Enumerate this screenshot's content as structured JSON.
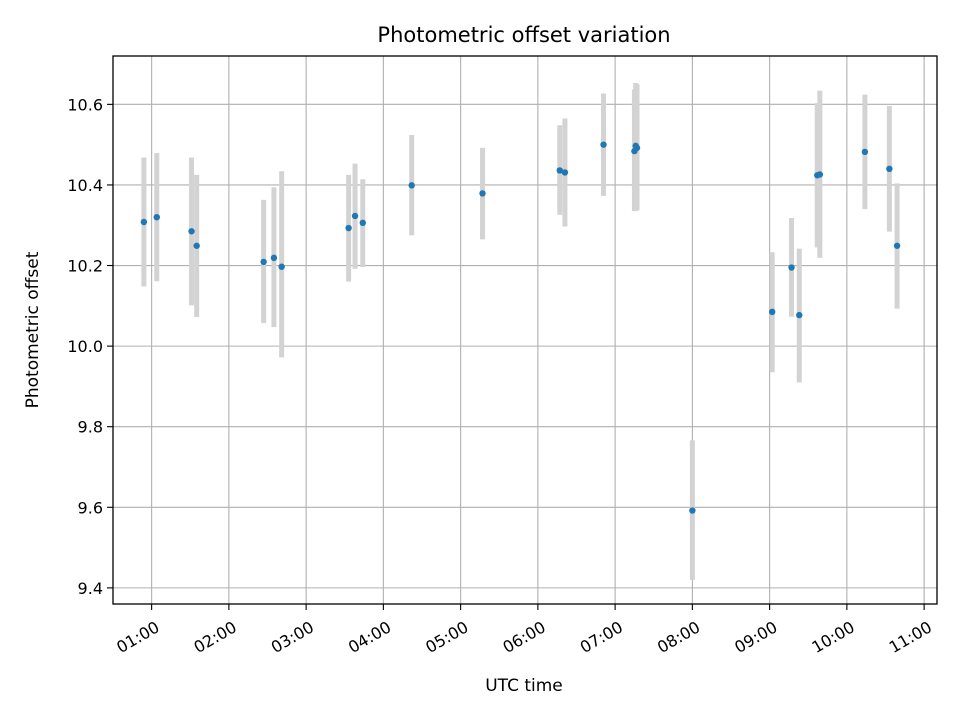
{
  "chart_data": {
    "type": "scatter",
    "title": "Photometric offset variation",
    "xlabel": "UTC time",
    "ylabel": "Photometric offset",
    "xlim": [
      "00:30",
      "11:10"
    ],
    "ylim": [
      9.36,
      10.72
    ],
    "x_ticks": [
      "01:00",
      "02:00",
      "03:00",
      "04:00",
      "05:00",
      "06:00",
      "07:00",
      "08:00",
      "09:00",
      "10:00",
      "11:00"
    ],
    "y_ticks": [
      9.4,
      9.6,
      9.8,
      10.0,
      10.2,
      10.4,
      10.6
    ],
    "y_tick_labels": [
      "9.4",
      "9.6",
      "9.8",
      "10.0",
      "10.2",
      "10.4",
      "10.6"
    ],
    "grid": true,
    "marker_color": "#1f77b4",
    "errorbar_color": "#d3d3d3",
    "points": [
      {
        "time": "00:54",
        "value": 10.308,
        "low": 10.148,
        "high": 10.468
      },
      {
        "time": "01:04",
        "value": 10.32,
        "low": 10.161,
        "high": 10.479
      },
      {
        "time": "01:31",
        "value": 10.285,
        "low": 10.101,
        "high": 10.468
      },
      {
        "time": "01:35",
        "value": 10.249,
        "low": 10.072,
        "high": 10.425
      },
      {
        "time": "02:27",
        "value": 10.209,
        "low": 10.057,
        "high": 10.363
      },
      {
        "time": "02:35",
        "value": 10.219,
        "low": 10.047,
        "high": 10.394
      },
      {
        "time": "02:41",
        "value": 10.197,
        "low": 9.972,
        "high": 10.434
      },
      {
        "time": "03:33",
        "value": 10.293,
        "low": 10.16,
        "high": 10.425
      },
      {
        "time": "03:38",
        "value": 10.323,
        "low": 10.192,
        "high": 10.453
      },
      {
        "time": "03:44",
        "value": 10.306,
        "low": 10.196,
        "high": 10.414
      },
      {
        "time": "04:22",
        "value": 10.399,
        "low": 10.275,
        "high": 10.524
      },
      {
        "time": "05:17",
        "value": 10.379,
        "low": 10.265,
        "high": 10.492
      },
      {
        "time": "06:17",
        "value": 10.436,
        "low": 10.326,
        "high": 10.548
      },
      {
        "time": "06:21",
        "value": 10.431,
        "low": 10.297,
        "high": 10.565
      },
      {
        "time": "06:51",
        "value": 10.5,
        "low": 10.373,
        "high": 10.627
      },
      {
        "time": "07:15",
        "value": 10.484,
        "low": 10.335,
        "high": 10.637
      },
      {
        "time": "07:16",
        "value": 10.497,
        "low": 10.336,
        "high": 10.653
      },
      {
        "time": "07:17",
        "value": 10.492,
        "low": 10.337,
        "high": 10.65
      },
      {
        "time": "08:00",
        "value": 9.592,
        "low": 9.42,
        "high": 9.766
      },
      {
        "time": "09:02",
        "value": 10.085,
        "low": 9.935,
        "high": 10.233
      },
      {
        "time": "09:17",
        "value": 10.195,
        "low": 10.073,
        "high": 10.318
      },
      {
        "time": "09:23",
        "value": 10.077,
        "low": 9.91,
        "high": 10.242
      },
      {
        "time": "09:37",
        "value": 10.424,
        "low": 10.245,
        "high": 10.603
      },
      {
        "time": "09:39",
        "value": 10.426,
        "low": 10.219,
        "high": 10.634
      },
      {
        "time": "10:14",
        "value": 10.482,
        "low": 10.34,
        "high": 10.624
      },
      {
        "time": "10:33",
        "value": 10.44,
        "low": 10.284,
        "high": 10.596
      },
      {
        "time": "10:39",
        "value": 10.249,
        "low": 10.093,
        "high": 10.404
      }
    ]
  }
}
